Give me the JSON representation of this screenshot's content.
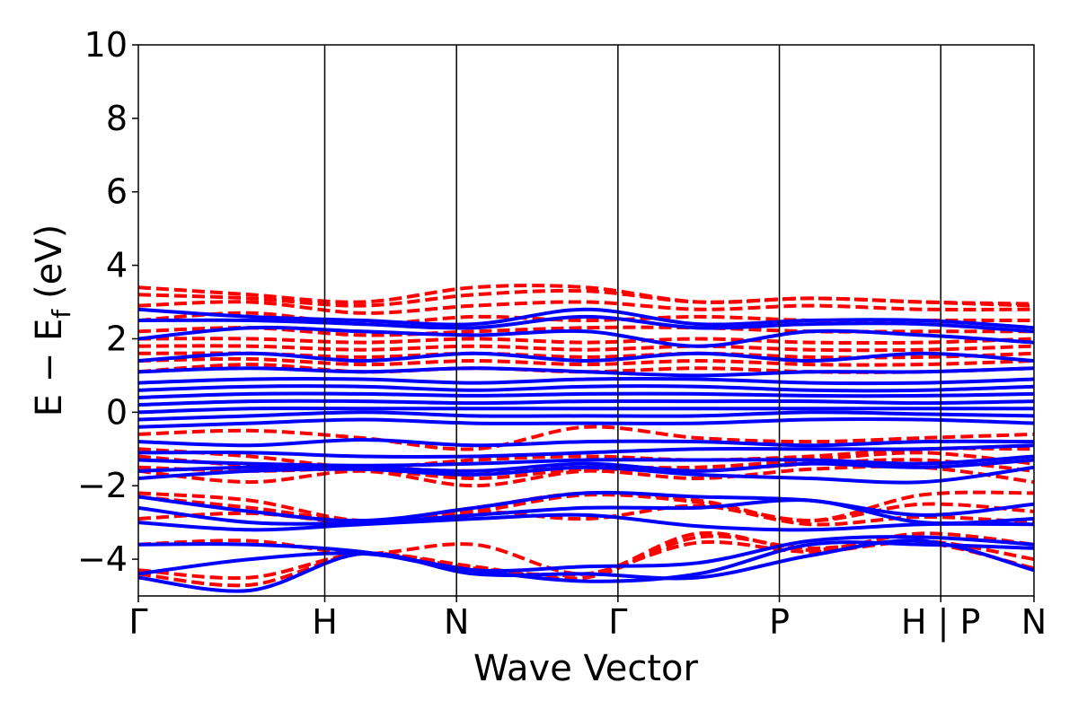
{
  "chart_data": {
    "type": "line",
    "title": "",
    "xlabel": "Wave Vector",
    "ylabel": "E − E",
    "ylabel_sub": "f",
    "ylabel_unit": "(eV)",
    "ylim": [
      -5,
      10
    ],
    "yticks": [
      -4,
      -2,
      0,
      2,
      4,
      6,
      8,
      10
    ],
    "ytick_labels": [
      "−4",
      "−2",
      "0",
      "2",
      "4",
      "6",
      "8",
      "10"
    ],
    "kpath_positions": [
      0,
      1.0,
      1.707,
      2.573,
      3.439,
      4.305,
      4.805
    ],
    "xtick_labels": [
      "Γ",
      "H",
      "N",
      "Γ",
      "P",
      "H | P",
      "N"
    ],
    "segment_breaks": [
      1.0,
      1.707,
      2.573,
      3.439,
      4.305
    ],
    "colors": {
      "spin_up": "#ff0000",
      "spin_down": "#0000ff"
    },
    "legend": "none",
    "grid": false,
    "series": [
      {
        "style": "dashed",
        "color": "#ff0000",
        "bands": [
          [
            -4.4,
            -4.7,
            -3.85,
            -4.25,
            -4.4,
            -3.55,
            -3.8,
            -3.55,
            -4.25
          ],
          [
            -4.3,
            -4.5,
            -3.85,
            -4.2,
            -4.5,
            -3.4,
            -3.7,
            -3.5,
            -4.0
          ],
          [
            -3.6,
            -3.5,
            -3.85,
            -3.6,
            -4.4,
            -3.3,
            -3.75,
            -3.3,
            -3.6
          ],
          [
            -2.9,
            -2.75,
            -3.0,
            -2.7,
            -2.9,
            -2.55,
            -3.05,
            -2.85,
            -3.0
          ],
          [
            -2.3,
            -2.6,
            -2.95,
            -2.7,
            -2.25,
            -2.45,
            -2.95,
            -2.5,
            -2.7
          ],
          [
            -2.2,
            -2.4,
            -2.95,
            -2.6,
            -2.2,
            -2.4,
            -2.95,
            -2.25,
            -2.2
          ],
          [
            -1.6,
            -1.9,
            -1.6,
            -2.0,
            -1.6,
            -1.8,
            -1.55,
            -1.5,
            -1.9
          ],
          [
            -1.5,
            -1.6,
            -1.55,
            -1.8,
            -1.55,
            -1.6,
            -1.4,
            -1.3,
            -1.6
          ],
          [
            -1.2,
            -1.45,
            -1.5,
            -1.6,
            -1.5,
            -1.5,
            -1.3,
            -1.1,
            -1.4
          ],
          [
            -1.0,
            -1.2,
            -1.5,
            -1.3,
            -1.2,
            -1.3,
            -1.2,
            -1.0,
            -1.0
          ],
          [
            -0.6,
            -0.5,
            -0.7,
            -1.0,
            -0.4,
            -0.7,
            -0.8,
            -0.7,
            -0.6
          ],
          [
            1.1,
            1.3,
            1.1,
            1.2,
            1.1,
            1.2,
            1.1,
            1.1,
            1.2
          ],
          [
            1.4,
            1.45,
            1.3,
            1.4,
            1.3,
            1.4,
            1.3,
            1.3,
            1.4
          ],
          [
            1.6,
            1.6,
            1.5,
            1.6,
            1.5,
            1.6,
            1.5,
            1.5,
            1.6
          ],
          [
            1.8,
            1.8,
            1.7,
            1.8,
            1.7,
            1.8,
            1.7,
            1.7,
            1.8
          ],
          [
            2.0,
            2.0,
            1.9,
            2.0,
            1.9,
            2.0,
            1.9,
            1.9,
            2.0
          ],
          [
            2.2,
            2.3,
            2.1,
            2.2,
            2.3,
            2.3,
            2.2,
            2.2,
            2.2
          ],
          [
            2.5,
            2.7,
            2.4,
            2.6,
            2.5,
            2.6,
            2.5,
            2.5,
            2.5
          ],
          [
            2.9,
            3.0,
            2.7,
            2.9,
            3.0,
            2.8,
            2.9,
            2.8,
            2.8
          ],
          [
            3.2,
            3.1,
            2.9,
            3.2,
            3.3,
            3.0,
            3.1,
            3.0,
            2.9
          ],
          [
            3.4,
            3.2,
            3.0,
            3.4,
            3.4,
            3.0,
            3.1,
            3.0,
            2.95
          ]
        ]
      },
      {
        "style": "solid",
        "color": "#0000ff",
        "bands": [
          [
            -4.5,
            -4.85,
            -3.85,
            -4.4,
            -4.4,
            -4.5,
            -3.9,
            -3.5,
            -4.3
          ],
          [
            -4.4,
            -4.0,
            -3.85,
            -4.3,
            -4.6,
            -4.4,
            -3.6,
            -3.6,
            -3.7
          ],
          [
            -3.6,
            -3.6,
            -3.8,
            -4.3,
            -4.2,
            -4.1,
            -3.5,
            -3.4,
            -3.6
          ],
          [
            -3.0,
            -3.2,
            -3.05,
            -2.9,
            -2.8,
            -3.1,
            -3.2,
            -3.05,
            -3.05
          ],
          [
            -2.6,
            -3.0,
            -3.0,
            -2.8,
            -2.6,
            -2.6,
            -2.4,
            -3.0,
            -2.9
          ],
          [
            -2.3,
            -2.7,
            -2.95,
            -2.6,
            -2.2,
            -2.3,
            -2.4,
            -2.8,
            -2.5
          ],
          [
            -1.8,
            -1.6,
            -1.55,
            -1.7,
            -1.5,
            -1.7,
            -1.8,
            -1.9,
            -1.5
          ],
          [
            -1.6,
            -1.5,
            -1.5,
            -1.6,
            -1.4,
            -1.6,
            -1.4,
            -1.5,
            -1.3
          ],
          [
            -1.3,
            -1.4,
            -1.45,
            -1.4,
            -1.3,
            -1.3,
            -1.3,
            -1.4,
            -1.2
          ],
          [
            -1.1,
            -1.1,
            -1.2,
            -1.2,
            -1.1,
            -1.0,
            -1.0,
            -1.0,
            -0.9
          ],
          [
            -0.8,
            -0.9,
            -0.75,
            -0.9,
            -0.8,
            -0.8,
            -0.9,
            -0.8,
            -0.8
          ],
          [
            -0.4,
            -0.3,
            -0.2,
            -0.3,
            -0.3,
            -0.3,
            -0.2,
            -0.2,
            -0.3
          ],
          [
            -0.2,
            -0.1,
            0.0,
            -0.1,
            -0.1,
            -0.1,
            0.0,
            -0.05,
            -0.1
          ],
          [
            0.0,
            0.1,
            0.1,
            0.1,
            0.1,
            0.1,
            0.1,
            0.1,
            0.1
          ],
          [
            0.2,
            0.3,
            0.3,
            0.25,
            0.3,
            0.3,
            0.3,
            0.25,
            0.3
          ],
          [
            0.4,
            0.5,
            0.5,
            0.45,
            0.5,
            0.5,
            0.45,
            0.45,
            0.5
          ],
          [
            0.6,
            0.7,
            0.7,
            0.6,
            0.7,
            0.7,
            0.6,
            0.6,
            0.7
          ],
          [
            0.8,
            0.9,
            0.9,
            0.8,
            0.9,
            0.9,
            0.8,
            0.8,
            0.9
          ],
          [
            1.1,
            1.2,
            1.1,
            1.2,
            1.1,
            1.0,
            1.1,
            1.1,
            1.2
          ],
          [
            1.4,
            1.6,
            1.4,
            1.6,
            1.4,
            1.6,
            1.4,
            1.6,
            1.4
          ],
          [
            2.0,
            2.3,
            2.2,
            2.1,
            2.2,
            1.8,
            2.2,
            2.1,
            1.9
          ],
          [
            2.5,
            2.5,
            2.4,
            2.3,
            2.6,
            2.3,
            2.4,
            2.4,
            2.2
          ],
          [
            2.8,
            2.6,
            2.5,
            2.4,
            2.8,
            2.4,
            2.5,
            2.5,
            2.3
          ]
        ]
      }
    ]
  }
}
